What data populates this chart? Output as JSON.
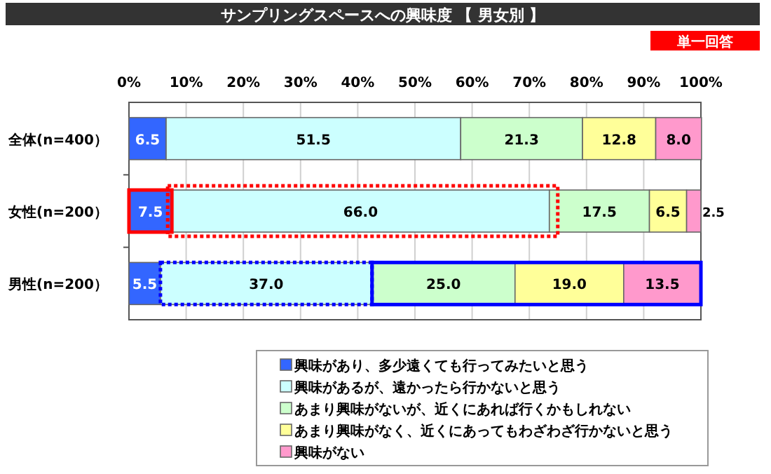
{
  "chart_data": {
    "type": "bar",
    "orientation": "horizontal",
    "stacked": true,
    "title": "サンプリングスペースへの興味度 【 男女別 】",
    "annotations": [
      "単一回答"
    ],
    "categories": [
      "全体(n=400）",
      "女性(n=200）",
      "男性(n=200）"
    ],
    "series": [
      {
        "name": "興味があり、多少遠くても行ってみたいと思う",
        "color": "#3366ff",
        "values": [
          6.5,
          7.5,
          5.5
        ],
        "value_labels": [
          "6.5",
          "7.5",
          "5.5"
        ]
      },
      {
        "name": "興味があるが、遠かったら行かないと思う",
        "color": "#ccffff",
        "values": [
          51.5,
          66.0,
          37.0
        ],
        "value_labels": [
          "51.5",
          "66.0",
          "37.0"
        ]
      },
      {
        "name": "あまり興味がないが、近くにあれば行くかもしれない",
        "color": "#ccffcc",
        "values": [
          21.3,
          17.5,
          25.0
        ],
        "value_labels": [
          "21.3",
          "17.5",
          "25.0"
        ]
      },
      {
        "name": "あまり興味がなく、近くにあってもわざわざ行かないと思う",
        "color": "#ffff99",
        "values": [
          12.8,
          6.5,
          19.0
        ],
        "value_labels": [
          "12.8",
          "6.5",
          "19.0"
        ]
      },
      {
        "name": "興味がない",
        "color": "#ff99cc",
        "values": [
          8.0,
          2.5,
          13.5
        ],
        "value_labels": [
          "8.0",
          "2.5",
          "13.5"
        ]
      }
    ],
    "xlim": [
      0,
      100
    ],
    "xticks": [
      {
        "value": 0,
        "label": "0%"
      },
      {
        "value": 10,
        "label": "10%"
      },
      {
        "value": 20,
        "label": "20%"
      },
      {
        "value": 30,
        "label": "30%"
      },
      {
        "value": 40,
        "label": "40%"
      },
      {
        "value": 50,
        "label": "50%"
      },
      {
        "value": 60,
        "label": "60%"
      },
      {
        "value": 70,
        "label": "70%"
      },
      {
        "value": 80,
        "label": "80%"
      },
      {
        "value": 90,
        "label": "90%"
      },
      {
        "value": 100,
        "label": "100%"
      }
    ],
    "grid": "x",
    "legend": "bottom"
  }
}
